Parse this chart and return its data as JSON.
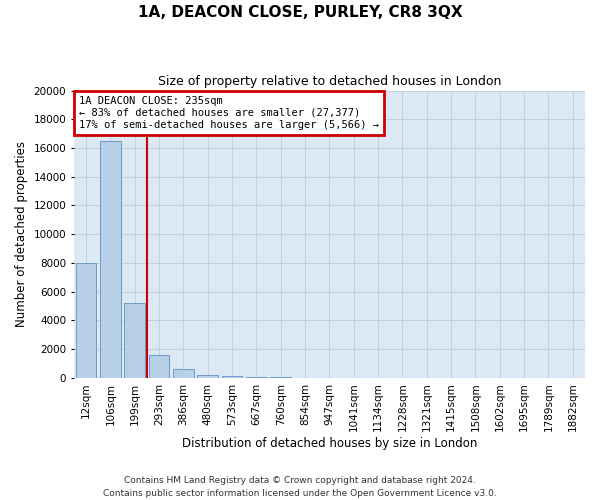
{
  "title": "1A, DEACON CLOSE, PURLEY, CR8 3QX",
  "subtitle": "Size of property relative to detached houses in London",
  "xlabel": "Distribution of detached houses by size in London",
  "ylabel": "Number of detached properties",
  "categories": [
    "12sqm",
    "106sqm",
    "199sqm",
    "293sqm",
    "386sqm",
    "480sqm",
    "573sqm",
    "667sqm",
    "760sqm",
    "854sqm",
    "947sqm",
    "1041sqm",
    "1134sqm",
    "1228sqm",
    "1321sqm",
    "1415sqm",
    "1508sqm",
    "1602sqm",
    "1695sqm",
    "1789sqm",
    "1882sqm"
  ],
  "values": [
    8000,
    16500,
    5200,
    1600,
    600,
    200,
    130,
    80,
    60,
    20,
    0,
    0,
    0,
    0,
    0,
    0,
    0,
    0,
    0,
    0,
    0
  ],
  "bar_color": "#b8cfe8",
  "bar_edge_color": "#6090c0",
  "vline_x_pos": 2.5,
  "vline_color": "#cc0000",
  "annotation_text": "1A DEACON CLOSE: 235sqm\n← 83% of detached houses are smaller (27,377)\n17% of semi-detached houses are larger (5,566) →",
  "annotation_box_color": "#cc0000",
  "ylim": [
    0,
    20000
  ],
  "yticks": [
    0,
    2000,
    4000,
    6000,
    8000,
    10000,
    12000,
    14000,
    16000,
    18000,
    20000
  ],
  "grid_color": "#c0d0e0",
  "bg_color": "#dce8f4",
  "footer": "Contains HM Land Registry data © Crown copyright and database right 2024.\nContains public sector information licensed under the Open Government Licence v3.0.",
  "title_fontsize": 11,
  "subtitle_fontsize": 9,
  "xlabel_fontsize": 8.5,
  "ylabel_fontsize": 8.5,
  "tick_fontsize": 7.5,
  "footer_fontsize": 6.5
}
